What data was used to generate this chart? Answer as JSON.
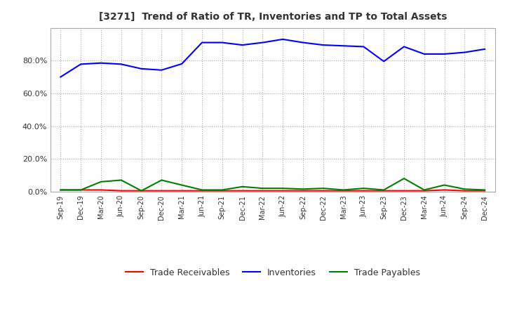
{
  "title": "[3271]  Trend of Ratio of TR, Inventories and TP to Total Assets",
  "x_labels": [
    "Sep-19",
    "Dec-19",
    "Mar-20",
    "Jun-20",
    "Sep-20",
    "Dec-20",
    "Mar-21",
    "Jun-21",
    "Sep-21",
    "Dec-21",
    "Mar-22",
    "Jun-22",
    "Sep-22",
    "Dec-22",
    "Mar-23",
    "Jun-23",
    "Sep-23",
    "Dec-23",
    "Mar-24",
    "Jun-24",
    "Sep-24",
    "Dec-24"
  ],
  "inventories": [
    0.7,
    0.778,
    0.785,
    0.778,
    0.75,
    0.742,
    0.78,
    0.91,
    0.91,
    0.895,
    0.91,
    0.93,
    0.91,
    0.895,
    0.89,
    0.885,
    0.795,
    0.885,
    0.84,
    0.84,
    0.85,
    0.87
  ],
  "trade_receivables": [
    0.01,
    0.01,
    0.01,
    0.005,
    0.005,
    0.005,
    0.005,
    0.005,
    0.005,
    0.005,
    0.005,
    0.005,
    0.005,
    0.005,
    0.005,
    0.005,
    0.005,
    0.005,
    0.005,
    0.01,
    0.005,
    0.005
  ],
  "trade_payables": [
    0.01,
    0.01,
    0.06,
    0.07,
    0.005,
    0.07,
    0.04,
    0.01,
    0.01,
    0.03,
    0.02,
    0.02,
    0.015,
    0.02,
    0.01,
    0.02,
    0.01,
    0.08,
    0.01,
    0.04,
    0.015,
    0.01
  ],
  "line_color_inventories": "#0000FF",
  "line_color_trade_receivables": "#FF0000",
  "line_color_trade_payables": "#008000",
  "background_color": "#FFFFFF",
  "grid_color": "#AAAAAA",
  "ylim": [
    0.0,
    1.0
  ],
  "yticks": [
    0.0,
    0.2,
    0.4,
    0.6,
    0.8
  ],
  "legend_labels": [
    "Trade Receivables",
    "Inventories",
    "Trade Payables"
  ],
  "title_color": "#333333",
  "tick_color": "#333333"
}
